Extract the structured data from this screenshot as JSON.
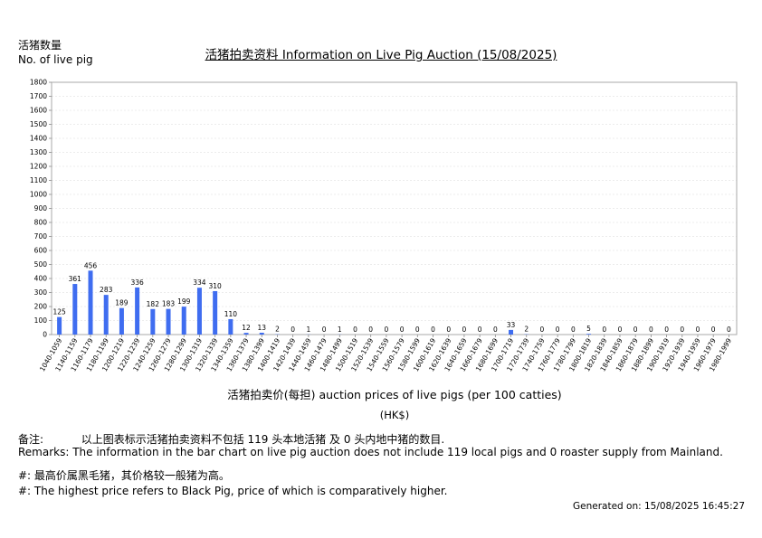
{
  "header": {
    "ylabel_zh": "活猪数量",
    "ylabel_en": "No. of live pig",
    "title": "活猪拍卖资料 Information on Live Pig Auction (15/08/2025)"
  },
  "chart_data": {
    "type": "bar",
    "title": "活猪拍卖资料 Information on Live Pig Auction (15/08/2025)",
    "xlabel": "活猪拍卖价(每担) auction prices of live pigs (per 100 catties)",
    "xunit": "(HK$)",
    "ylabel": "活猪数量 No. of live pig",
    "ylim": [
      0,
      1800
    ],
    "yticks": [
      0,
      100,
      200,
      300,
      400,
      500,
      600,
      700,
      800,
      900,
      1000,
      1100,
      1200,
      1300,
      1400,
      1500,
      1600,
      1700,
      1800
    ],
    "grid": true,
    "bar_color": "#3f6df0",
    "categories": [
      "1040-1059",
      "1140-1159",
      "1160-1179",
      "1180-1199",
      "1200-1219",
      "1220-1239",
      "1240-1259",
      "1260-1279",
      "1280-1299",
      "1300-1319",
      "1320-1339",
      "1340-1359",
      "1360-1379",
      "1380-1399",
      "1400-1419",
      "1420-1439",
      "1440-1459",
      "1460-1479",
      "1480-1499",
      "1500-1519",
      "1520-1539",
      "1540-1559",
      "1560-1579",
      "1580-1599",
      "1600-1619",
      "1620-1639",
      "1640-1659",
      "1660-1679",
      "1680-1699",
      "1700-1719",
      "1720-1739",
      "1740-1759",
      "1760-1779",
      "1780-1799",
      "1800-1819",
      "1820-1839",
      "1840-1859",
      "1860-1879",
      "1880-1899",
      "1900-1919",
      "1920-1939",
      "1940-1959",
      "1960-1979",
      "1980-1999"
    ],
    "values": [
      125,
      361,
      456,
      283,
      189,
      336,
      182,
      183,
      199,
      334,
      310,
      110,
      12,
      13,
      2,
      0,
      1,
      0,
      1,
      0,
      0,
      0,
      0,
      0,
      0,
      0,
      0,
      0,
      0,
      33,
      2,
      0,
      0,
      0,
      5,
      0,
      0,
      0,
      0,
      0,
      0,
      0,
      0,
      0
    ]
  },
  "notes": {
    "remark_zh_label": "备注:",
    "remark_zh_text": "以上图表标示活猪拍卖资料不包括 119 头本地活猪 及 0 头内地中猪的数目.",
    "remark_en": "Remarks: The information in the bar chart on live pig auction does not include 119 local pigs and 0 roaster supply from Mainland.",
    "hash_zh": "#: 最高价属黑毛猪，其价格较一般猪为高。",
    "hash_en": "#: The highest price refers to Black Pig, price of which is comparatively higher."
  },
  "footer": {
    "generated": "Generated on: 15/08/2025 16:45:27"
  }
}
